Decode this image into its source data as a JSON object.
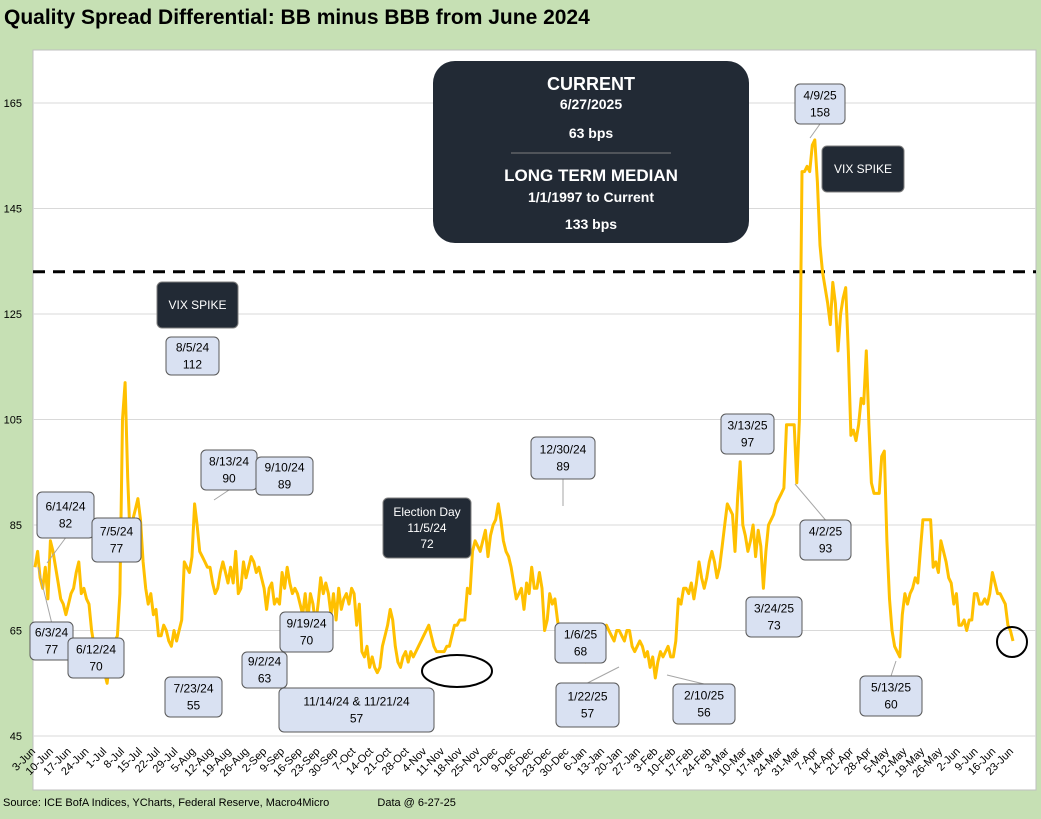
{
  "chart_data": {
    "type": "line",
    "title": "Quality Spread Differential: BB minus BBB from June 2024",
    "source": "Source: ICE BofA Indices, YCharts, Federal Reserve, Macro4Micro",
    "data_date": "Data @ 6-27-25",
    "ylim": [
      45,
      170
    ],
    "yticks": [
      45,
      65,
      85,
      105,
      125,
      145,
      165
    ],
    "grid": true,
    "series_color": "#ffc000",
    "reference_line": {
      "name": "Long Term Median",
      "value": 133
    },
    "xticks": [
      "3-Jun",
      "10-Jun",
      "17-Jun",
      "24-Jun",
      "1-Jul",
      "8-Jul",
      "15-Jul",
      "22-Jul",
      "29-Jul",
      "5-Aug",
      "12-Aug",
      "19-Aug",
      "26-Aug",
      "2-Sep",
      "9-Sep",
      "16-Sep",
      "23-Sep",
      "30-Sep",
      "7-Oct",
      "14-Oct",
      "21-Oct",
      "28-Oct",
      "4-Nov",
      "11-Nov",
      "18-Nov",
      "25-Nov",
      "2-Dec",
      "9-Dec",
      "16-Dec",
      "23-Dec",
      "30-Dec",
      "6-Jan",
      "13-Jan",
      "20-Jan",
      "27-Jan",
      "3-Feb",
      "10-Feb",
      "17-Feb",
      "24-Feb",
      "3-Mar",
      "10-Mar",
      "17-Mar",
      "24-Mar",
      "31-Mar",
      "7-Apr",
      "14-Apr",
      "21-Apr",
      "28-Apr",
      "5-May",
      "12-May",
      "19-May",
      "26-May",
      "2-Jun",
      "9-Jun",
      "16-Jun",
      "23-Jun"
    ],
    "values": [
      77,
      80,
      75,
      73,
      77,
      71,
      82,
      80,
      77,
      74,
      71,
      70,
      68,
      70,
      72,
      73,
      76,
      78,
      72,
      73,
      71,
      70,
      65,
      62,
      61,
      60,
      58,
      57,
      55,
      59,
      61,
      63,
      64,
      72,
      105,
      112,
      94,
      82,
      86,
      88,
      90,
      86,
      78,
      73,
      70,
      72,
      68,
      69,
      64,
      64,
      66,
      65,
      63,
      62,
      65,
      63,
      65,
      67,
      78,
      77,
      76,
      79,
      89,
      85,
      80,
      79,
      78,
      77,
      77,
      74,
      72,
      73,
      76,
      78,
      76,
      74,
      77,
      74,
      80,
      72,
      73,
      78,
      75,
      77,
      79,
      78,
      76,
      77,
      75,
      73,
      69,
      73,
      74,
      70,
      71,
      70,
      76,
      73,
      77,
      74,
      72,
      73,
      72,
      70,
      68,
      72,
      67,
      72,
      70,
      66,
      70,
      75,
      72,
      74,
      72,
      68,
      72,
      67,
      73,
      69,
      71,
      72,
      70,
      73,
      72,
      66,
      70,
      61,
      60,
      62,
      58,
      60,
      58,
      57,
      58,
      62,
      64,
      66,
      69,
      67,
      62,
      59,
      58,
      60,
      61,
      59,
      61,
      60,
      61,
      62,
      63,
      64,
      65,
      66,
      64,
      62,
      61,
      61,
      61,
      61,
      62,
      62,
      64,
      66,
      66,
      67,
      67,
      67,
      73,
      72,
      80,
      82,
      81,
      80,
      82,
      84,
      79,
      83,
      85,
      86,
      89,
      86,
      82,
      80,
      79,
      77,
      74,
      71,
      72,
      73,
      69,
      74,
      72,
      77,
      73,
      73,
      76,
      73,
      65,
      67,
      72,
      70,
      71,
      67,
      64,
      64,
      63,
      64,
      63,
      64,
      62,
      62,
      60,
      61,
      59,
      61,
      64,
      62,
      60,
      61,
      62,
      65,
      66,
      65,
      64,
      63,
      65,
      65,
      64,
      63,
      65,
      65,
      62,
      61,
      62,
      63,
      62,
      60,
      61,
      58,
      60,
      56,
      59,
      61,
      60,
      61,
      62,
      60,
      60,
      63,
      71,
      70,
      73,
      73,
      72,
      74,
      71,
      74,
      78,
      75,
      73,
      75,
      78,
      80,
      78,
      75,
      77,
      81,
      85,
      89,
      88,
      87,
      80,
      90,
      97,
      85,
      83,
      80,
      82,
      85,
      79,
      84,
      81,
      73,
      80,
      85,
      86,
      87,
      89,
      90,
      91,
      92,
      104,
      104,
      104,
      104,
      93,
      105,
      152,
      152,
      153,
      152,
      157,
      158,
      150,
      138,
      133,
      130,
      127,
      123,
      131,
      127,
      118,
      125,
      128,
      130,
      118,
      102,
      103,
      101,
      104,
      109,
      108,
      118,
      104,
      93,
      91,
      91,
      91,
      98,
      99,
      82,
      71,
      65,
      62,
      61,
      60,
      68,
      72,
      70,
      72,
      73,
      75,
      74,
      80,
      86,
      86,
      86,
      86,
      77,
      78,
      76,
      82,
      80,
      78,
      75,
      74,
      70,
      72,
      66,
      66,
      67,
      65,
      67,
      67,
      72,
      72,
      70,
      70,
      71,
      70,
      72,
      76,
      74,
      72,
      72,
      71,
      70,
      66,
      65,
      63
    ]
  },
  "current_box": {
    "heading": "CURRENT",
    "date": "6/27/2025",
    "value": "63 bps",
    "median_heading": "LONG TERM MEDIAN",
    "median_range": "1/1/1997 to Current",
    "median_value": "133 bps"
  },
  "dark_labels": [
    {
      "id": "vix-spike-aug",
      "lines": [
        "VIX SPIKE"
      ]
    },
    {
      "id": "vix-spike-apr",
      "lines": [
        "VIX SPIKE"
      ]
    },
    {
      "id": "election-day",
      "lines": [
        "Election Day",
        "11/5/24",
        "72"
      ]
    }
  ],
  "annotations": [
    {
      "id": "ann-6-14-24",
      "lines": [
        "6/14/24",
        "82"
      ]
    },
    {
      "id": "ann-6-3-24",
      "lines": [
        "6/3/24",
        "77"
      ]
    },
    {
      "id": "ann-7-5-24",
      "lines": [
        "7/5/24",
        "77"
      ]
    },
    {
      "id": "ann-6-12-24",
      "lines": [
        "6/12/24",
        "70"
      ]
    },
    {
      "id": "ann-8-5-24",
      "lines": [
        "8/5/24",
        "112"
      ]
    },
    {
      "id": "ann-7-23-24",
      "lines": [
        "7/23/24",
        "55"
      ]
    },
    {
      "id": "ann-8-13-24",
      "lines": [
        "8/13/24",
        "90"
      ]
    },
    {
      "id": "ann-9-10-24",
      "lines": [
        "9/10/24",
        "89"
      ]
    },
    {
      "id": "ann-9-2-24",
      "lines": [
        "9/2/24",
        "63"
      ]
    },
    {
      "id": "ann-9-19-24",
      "lines": [
        "9/19/24",
        "70"
      ]
    },
    {
      "id": "ann-11-14-24",
      "lines": [
        "11/14/24 & 11/21/24",
        "57"
      ]
    },
    {
      "id": "ann-12-30-24",
      "lines": [
        "12/30/24",
        "89"
      ]
    },
    {
      "id": "ann-1-6-25",
      "lines": [
        "1/6/25",
        "68"
      ]
    },
    {
      "id": "ann-1-22-25",
      "lines": [
        "1/22/25",
        "57"
      ]
    },
    {
      "id": "ann-2-10-25",
      "lines": [
        "2/10/25",
        "56"
      ]
    },
    {
      "id": "ann-3-13-25",
      "lines": [
        "3/13/25",
        "97"
      ]
    },
    {
      "id": "ann-3-24-25",
      "lines": [
        "3/24/25",
        "73"
      ]
    },
    {
      "id": "ann-4-9-25",
      "lines": [
        "4/9/25",
        "158"
      ]
    },
    {
      "id": "ann-4-2-25",
      "lines": [
        "4/2/25",
        "93"
      ]
    },
    {
      "id": "ann-5-13-25",
      "lines": [
        "5/13/25",
        "60"
      ]
    }
  ]
}
